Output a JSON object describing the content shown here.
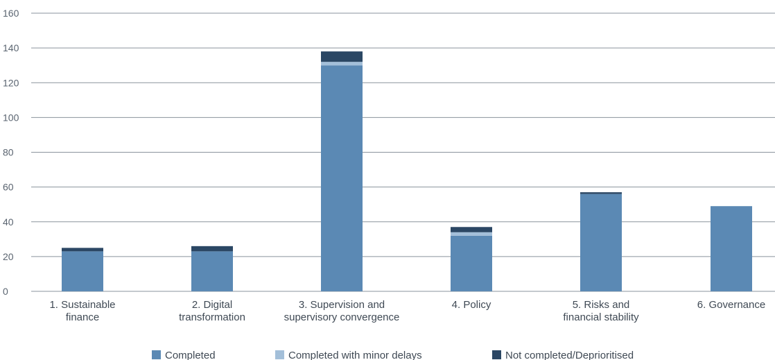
{
  "chart_data": {
    "type": "bar",
    "stacked": true,
    "categories": [
      [
        "1.  Sustainable",
        "finance"
      ],
      [
        "2. Digital",
        "transformation"
      ],
      [
        "3. Supervision and",
        "supervisory convergence"
      ],
      [
        "4. Policy"
      ],
      [
        "5. Risks and",
        "financial stability"
      ],
      [
        "6. Governance"
      ]
    ],
    "series": [
      {
        "name": "Completed",
        "color": "#5b89b4",
        "values": [
          23,
          23,
          130,
          32,
          56,
          49
        ]
      },
      {
        "name": "Completed with minor delays",
        "color": "#a3bfd9",
        "values": [
          0,
          0,
          2,
          2,
          0,
          0
        ]
      },
      {
        "name": "Not completed/Deprioritised",
        "color": "#2b4764",
        "values": [
          2,
          3,
          6,
          3,
          1,
          0
        ]
      }
    ],
    "yticks": [
      "0",
      "20",
      "40",
      "60",
      "80",
      "100",
      "120",
      "140",
      "160"
    ],
    "ylim": [
      0,
      160
    ],
    "grid": true,
    "legend_position": "bottom",
    "title": "",
    "xlabel": "",
    "ylabel": ""
  }
}
